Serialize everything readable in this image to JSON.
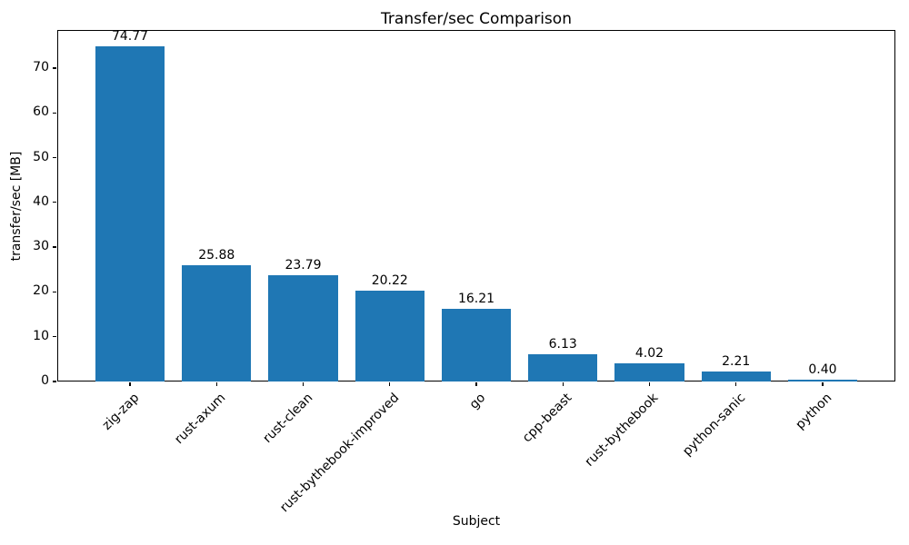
{
  "chart_data": {
    "type": "bar",
    "title": "Transfer/sec Comparison",
    "xlabel": "Subject",
    "ylabel": "transfer/sec [MB]",
    "categories": [
      "zig-zap",
      "rust-axum",
      "rust-clean",
      "rust-bythebook-improved",
      "go",
      "cpp-beast",
      "rust-bythebook",
      "python-sanic",
      "python"
    ],
    "values": [
      74.77,
      25.88,
      23.79,
      20.22,
      16.21,
      6.13,
      4.02,
      2.21,
      0.4
    ],
    "value_labels": [
      "74.77",
      "25.88",
      "23.79",
      "20.22",
      "16.21",
      "6.13",
      "4.02",
      "2.21",
      "0.40"
    ],
    "yticks": [
      0,
      10,
      20,
      30,
      40,
      50,
      60,
      70
    ],
    "ylim": [
      0,
      78.5
    ],
    "bar_color": "#1f77b4",
    "grid": "off",
    "legend": "none"
  }
}
